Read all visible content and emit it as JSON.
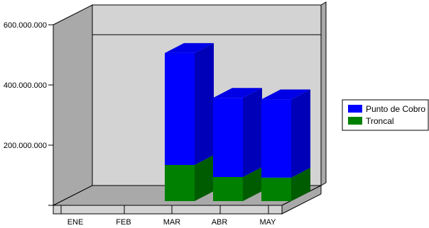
{
  "chart_data": {
    "type": "bar",
    "stacked": true,
    "three_d": true,
    "categories": [
      "ENE",
      "FEB",
      "MAR",
      "ABR",
      "MAY"
    ],
    "series": [
      {
        "name": "Troncal",
        "values": [
          0,
          0,
          120000000,
          80000000,
          78000000
        ]
      },
      {
        "name": "Punto de Cobro",
        "values": [
          0,
          0,
          372000000,
          263000000,
          260000000
        ]
      }
    ],
    "y_ticks": [
      {
        "value": 200000000,
        "label": "200.000.000"
      },
      {
        "value": 400000000,
        "label": "400.000.000"
      },
      {
        "value": 600000000,
        "label": "600.000.000"
      }
    ],
    "ylim": [
      0,
      600000000
    ],
    "grid": false,
    "legend_position": "right",
    "colors": {
      "Punto de Cobro": "#0000FF",
      "Troncal": "#008000",
      "back_wall": "#D3D3D3",
      "side_wall": "#A9A9A9",
      "floor": "#A9A9A9"
    }
  },
  "legend": {
    "items": [
      {
        "label": "Punto de Cobro",
        "color": "#0000FF"
      },
      {
        "label": "Troncal",
        "color": "#008000"
      }
    ]
  }
}
